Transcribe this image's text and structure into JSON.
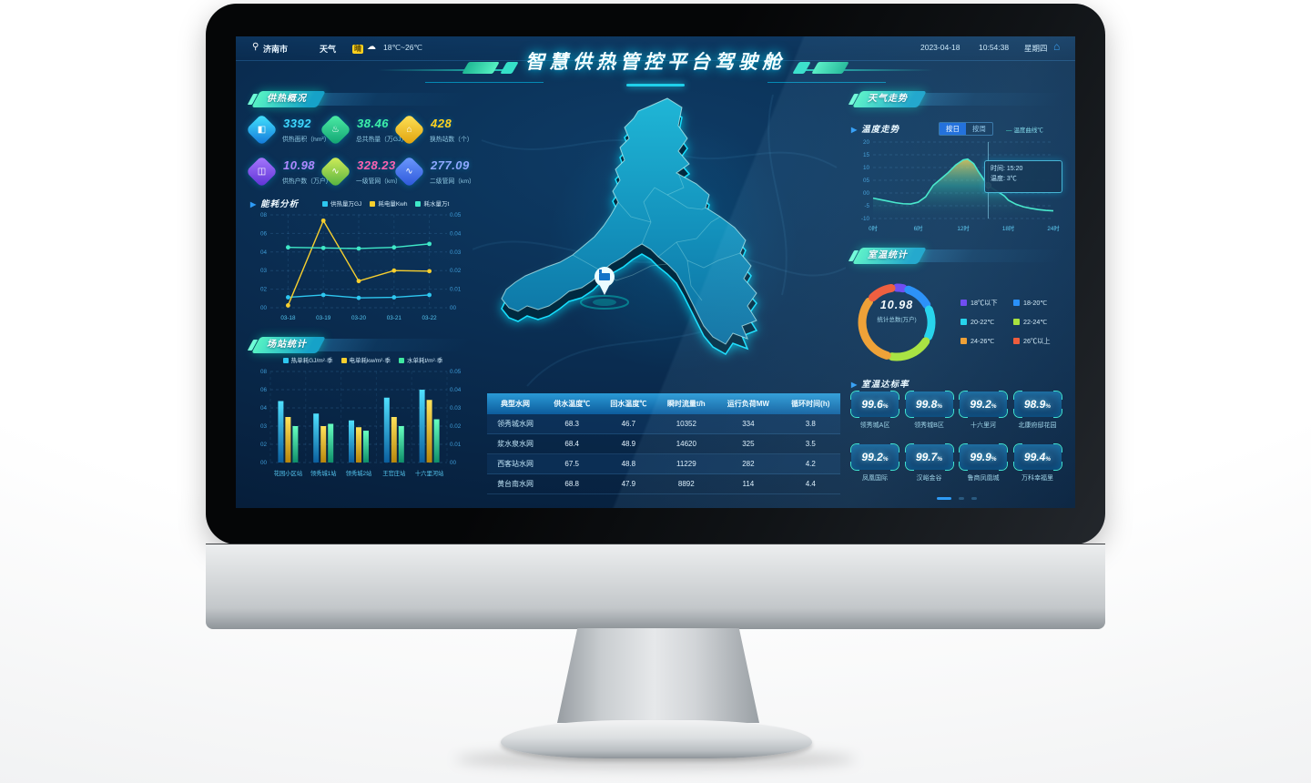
{
  "topbar": {
    "city": "济南市",
    "weather_label": "天气",
    "weather_badge": "晴",
    "temp_range": "18℃~26℃",
    "date": "2023-04-18",
    "time": "10:54:38",
    "weekday": "星期四"
  },
  "title": "智慧供热管控平台驾驶舱",
  "panels": {
    "overview": {
      "title": "供热概况",
      "stats": [
        {
          "value": "3392",
          "label": "供热面积（hm²）",
          "vcolor": "#3fd8ff",
          "grad": [
            "#45e8ff",
            "#1273d8"
          ],
          "glyph": "◧",
          "icon": "heat-area-icon"
        },
        {
          "value": "38.46",
          "label": "总共热量（万GJ）",
          "vcolor": "#3df0a8",
          "grad": [
            "#4ff0a8",
            "#0fa070"
          ],
          "glyph": "♨",
          "icon": "heat-total-icon"
        },
        {
          "value": "428",
          "label": "换热站数（个）",
          "vcolor": "#ffd21f",
          "grad": [
            "#ffe45a",
            "#dfa00a"
          ],
          "glyph": "⌂",
          "icon": "station-count-icon"
        },
        {
          "value": "10.98",
          "label": "供热户数（万户）",
          "vcolor": "#b088ff",
          "grad": [
            "#a97bff",
            "#5b2fd4"
          ],
          "glyph": "◫",
          "icon": "household-icon"
        },
        {
          "value": "328.23",
          "label": "一级管网（km）",
          "vcolor": "#ff62b0",
          "grad": [
            "#d8f05a",
            "#4fb040"
          ],
          "glyph": "∿",
          "icon": "primary-pipe-icon"
        },
        {
          "value": "277.09",
          "label": "二级管网（km）",
          "vcolor": "#8fa8ff",
          "grad": [
            "#6f9bff",
            "#2a55d8"
          ],
          "glyph": "∿",
          "icon": "secondary-pipe-icon"
        }
      ]
    },
    "energy": {
      "title": "能耗分析"
    },
    "station": {
      "title": "场站统计"
    },
    "weather": {
      "title": "天气走势",
      "sub": "温度走势",
      "tabs": [
        "按日",
        "按周"
      ],
      "active_tab": 0,
      "legend": "温度曲线℃",
      "tooltip": {
        "time_key": "时间:",
        "time": "15:20",
        "temp_key": "温度:",
        "temp": "3℃"
      }
    },
    "room": {
      "title": "室温统计",
      "center_value": "10.98",
      "center_label": "统计总数(万户)"
    },
    "compliance": {
      "title": "室温达标率",
      "items": [
        {
          "value": "99.6",
          "unit": "%",
          "label": "领秀城A区"
        },
        {
          "value": "99.8",
          "unit": "%",
          "label": "领秀城B区"
        },
        {
          "value": "99.2",
          "unit": "%",
          "label": "十六里河"
        },
        {
          "value": "98.9",
          "unit": "%",
          "label": "北康府邸花园"
        },
        {
          "value": "99.2",
          "unit": "%",
          "label": "凤凰国际"
        },
        {
          "value": "99.7",
          "unit": "%",
          "label": "汉峪金谷"
        },
        {
          "value": "99.9",
          "unit": "%",
          "label": "鲁商凤凰城"
        },
        {
          "value": "99.4",
          "unit": "%",
          "label": "万科幸福里"
        }
      ],
      "pagination": {
        "total": 3,
        "active": 0
      }
    }
  },
  "table": {
    "headers": [
      "典型水网",
      "供水温度℃",
      "回水温度℃",
      "瞬时流量t/h",
      "运行负荷MW",
      "循环时间(h)"
    ],
    "rows": [
      [
        "领秀城水网",
        "68.3",
        "46.7",
        "10352",
        "334",
        "3.8"
      ],
      [
        "浆水泉水网",
        "68.4",
        "48.9",
        "14620",
        "325",
        "3.5"
      ],
      [
        "西客站水网",
        "67.5",
        "48.8",
        "11229",
        "282",
        "4.2"
      ],
      [
        "黄台南水网",
        "68.8",
        "47.9",
        "8892",
        "114",
        "4.4"
      ]
    ]
  },
  "chart_data": [
    {
      "id": "energy",
      "type": "line",
      "title": "能耗分析",
      "categories": [
        "03-18",
        "03-19",
        "03-20",
        "03-21",
        "03-22"
      ],
      "left_ticks": [
        "08",
        "06",
        "04",
        "03",
        "02",
        "00"
      ],
      "right_ticks": [
        "0.05",
        "0.04",
        "0.03",
        "0.02",
        "0.01",
        "00"
      ],
      "ylim": [
        0,
        8
      ],
      "series": [
        {
          "name": "供热量万GJ",
          "color": "#2ec7f0",
          "values": [
            0.9,
            1.1,
            0.85,
            0.9,
            1.1
          ]
        },
        {
          "name": "耗电量Kwh",
          "color": "#f7cf2e",
          "values": [
            0.2,
            7.5,
            2.3,
            3.2,
            3.15
          ]
        },
        {
          "name": "耗水量万t",
          "color": "#3fe8c8",
          "values": [
            5.2,
            5.15,
            5.1,
            5.2,
            5.5
          ]
        }
      ]
    },
    {
      "id": "station",
      "type": "bar",
      "title": "场站统计",
      "categories": [
        "花园小区站",
        "领秀城1站",
        "领秀城2站",
        "王官庄站",
        "十六里河站"
      ],
      "left_ticks": [
        "08",
        "06",
        "04",
        "03",
        "02",
        "00"
      ],
      "right_ticks": [
        "0.05",
        "0.04",
        "0.03",
        "0.02",
        "0.01",
        "00"
      ],
      "ylim": [
        0,
        8
      ],
      "series": [
        {
          "name": "热单耗GJ/m²·季",
          "color": "#2ec7f0",
          "grad": [
            "#4fe0ff",
            "#0b5f9e"
          ],
          "values": [
            5.4,
            4.3,
            3.7,
            5.7,
            6.4
          ]
        },
        {
          "name": "电单耗kw/m²·季",
          "color": "#f7cf2e",
          "grad": [
            "#ffe25a",
            "#b8860b"
          ],
          "values": [
            4.0,
            3.2,
            3.1,
            4.0,
            5.5
          ]
        },
        {
          "name": "水单耗t/m²·季",
          "color": "#3fe8a0",
          "grad": [
            "#66ffc0",
            "#0f8f6a"
          ],
          "values": [
            3.2,
            3.4,
            2.8,
            3.2,
            3.8
          ]
        }
      ]
    },
    {
      "id": "weather",
      "type": "area",
      "title": "温度走势",
      "yticks": [
        "20",
        "15",
        "10",
        "05",
        "00",
        "-5",
        "-10"
      ],
      "xticks": [
        "0时",
        "6时",
        "12时",
        "18时",
        "24时"
      ],
      "ylim": [
        -10,
        20
      ],
      "xlim": [
        0,
        24
      ],
      "line_color": "#3fe8c8",
      "points": [
        [
          0,
          -2
        ],
        [
          1,
          -2.6
        ],
        [
          2,
          -3.2
        ],
        [
          3,
          -3.8
        ],
        [
          4,
          -4.2
        ],
        [
          5,
          -4.3
        ],
        [
          6,
          -3.6
        ],
        [
          7,
          -1.5
        ],
        [
          8,
          3
        ],
        [
          9,
          5.5
        ],
        [
          10,
          8
        ],
        [
          11,
          11
        ],
        [
          12,
          13
        ],
        [
          12.6,
          13.3
        ],
        [
          13.4,
          11.5
        ],
        [
          14,
          8.5
        ],
        [
          15,
          4.2
        ],
        [
          15.33,
          3
        ],
        [
          16,
          1.6
        ],
        [
          17,
          -0.2
        ],
        [
          17.5,
          -1.2
        ],
        [
          18,
          -2.8
        ],
        [
          19,
          -4.4
        ],
        [
          20,
          -5.4
        ],
        [
          21,
          -6
        ],
        [
          22,
          -6.5
        ],
        [
          23,
          -6.8
        ],
        [
          24,
          -7
        ]
      ],
      "cursor": {
        "x": 15.33,
        "y": 3
      }
    },
    {
      "id": "room-donut",
      "type": "pie",
      "title": "室温统计",
      "center_value": "10.98",
      "center_label": "统计总数(万户)",
      "segments": [
        {
          "label": "18℃以下",
          "color": "#6a3df0",
          "value": 3.5
        },
        {
          "label": "18-20℃",
          "color": "#1e88f7",
          "value": 13
        },
        {
          "label": "20-22℃",
          "color": "#19d2ea",
          "value": 15
        },
        {
          "label": "22-24℃",
          "color": "#a8e22e",
          "value": 21
        },
        {
          "label": "24-26℃",
          "color": "#f59a23",
          "value": 36
        },
        {
          "label": "26℃以上",
          "color": "#f4512c",
          "value": 11.5
        }
      ]
    }
  ]
}
